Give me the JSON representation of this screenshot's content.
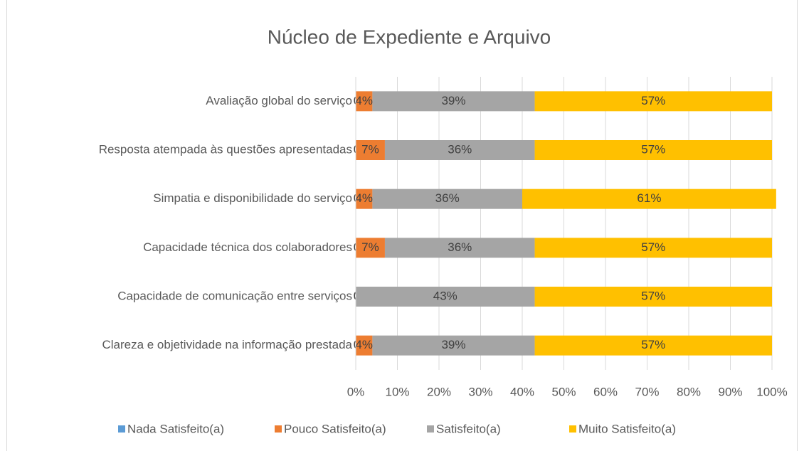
{
  "chart_data": {
    "type": "stacked_bar_horizontal",
    "title": "Núcleo de Expediente e Arquivo",
    "categories": [
      "Avaliação global do serviço",
      "Resposta atempada às questões apresentadas",
      "Simpatia e disponibilidade do serviço",
      "Capacidade técnica dos colaboradores",
      "Capacidade de comunicação entre serviços",
      "Clareza e objetividade na informação prestada"
    ],
    "series": [
      {
        "name": "Nada Satisfeito(a)",
        "color": "#5b9bd5",
        "values": [
          0,
          0,
          0,
          0,
          0,
          0
        ],
        "value_labels": [
          "0%",
          "0%",
          "0%",
          "0%",
          "0%",
          "0%"
        ]
      },
      {
        "name": "Pouco Satisfeito(a)",
        "color": "#ed7d31",
        "values": [
          4,
          7,
          4,
          7,
          0,
          4
        ],
        "value_labels": [
          "4%",
          "7%",
          "4%",
          "7%",
          "0%",
          "4%"
        ]
      },
      {
        "name": "Satisfeito(a)",
        "color": "#a5a5a5",
        "values": [
          39,
          36,
          36,
          36,
          43,
          39
        ],
        "value_labels": [
          "39%",
          "36%",
          "36%",
          "36%",
          "43%",
          "39%"
        ]
      },
      {
        "name": "Muito Satisfeito(a)",
        "color": "#ffc000",
        "values": [
          57,
          57,
          61,
          57,
          57,
          57
        ],
        "value_labels": [
          "57%",
          "57%",
          "61%",
          "57%",
          "57%",
          "57%"
        ]
      }
    ],
    "xlim": [
      0,
      100
    ],
    "xticks": [
      {
        "value": 0,
        "label": "0%"
      },
      {
        "value": 10,
        "label": "10%"
      },
      {
        "value": 20,
        "label": "20%"
      },
      {
        "value": 30,
        "label": "30%"
      },
      {
        "value": 40,
        "label": "40%"
      },
      {
        "value": 50,
        "label": "50%"
      },
      {
        "value": 60,
        "label": "60%"
      },
      {
        "value": 70,
        "label": "70%"
      },
      {
        "value": 80,
        "label": "80%"
      },
      {
        "value": 90,
        "label": "90%"
      },
      {
        "value": 100,
        "label": "100%"
      }
    ],
    "grid": true,
    "legend": "bottom"
  }
}
